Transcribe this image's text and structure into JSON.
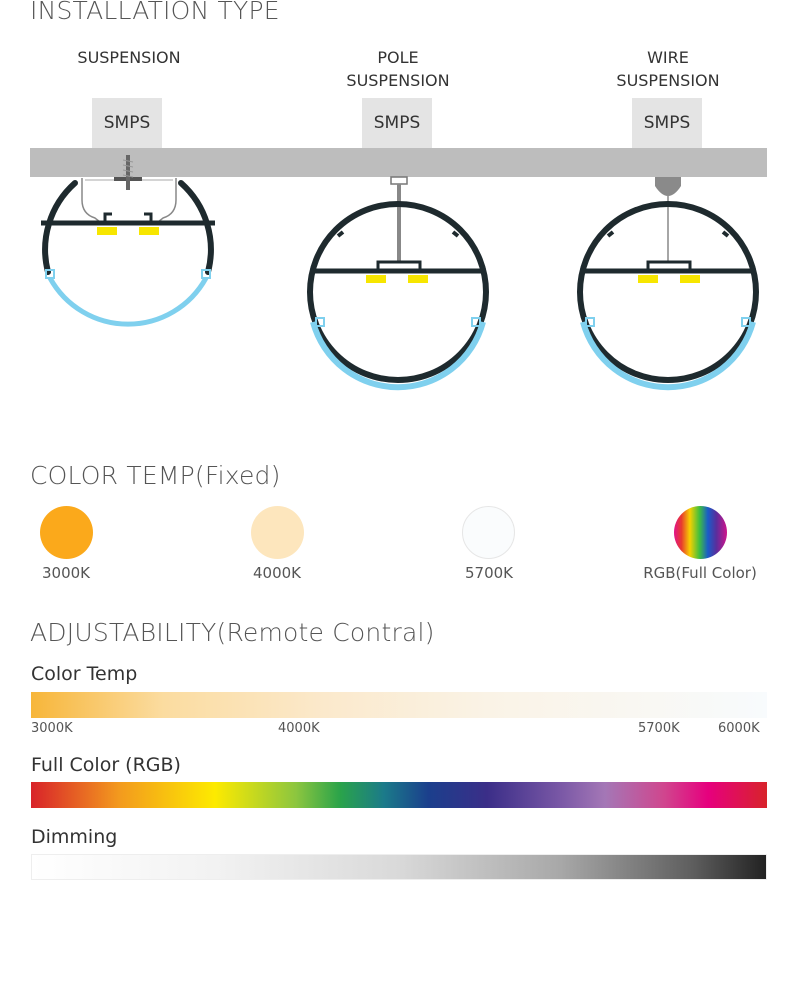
{
  "installation": {
    "title": "INSTALLATION TYPE",
    "types": [
      {
        "label_line1": "SUSPENSION",
        "label_line2": "",
        "box": "SMPS",
        "mount": "screw"
      },
      {
        "label_line1": "POLE",
        "label_line2": "SUSPENSION",
        "box": "SMPS",
        "mount": "pole"
      },
      {
        "label_line1": "WIRE",
        "label_line2": "SUSPENSION",
        "box": "SMPS",
        "mount": "wire"
      }
    ],
    "colors": {
      "ceiling": "#bdbdbd",
      "body": "#1e2a2e",
      "diffuser": "#7fd0ee",
      "led": "#f7e600",
      "wire": "#888888"
    }
  },
  "color_temp": {
    "title": "COLOR TEMP(Fixed)",
    "items": [
      {
        "label": "3000K",
        "color": "#fba91b"
      },
      {
        "label": "4000K",
        "color": "#fde6bd"
      },
      {
        "label": "5700K",
        "color": "#fafcfd"
      },
      {
        "label": "RGB(Full Color)",
        "color": "rgb-gradient"
      }
    ]
  },
  "adjustability": {
    "title": "ADJUSTABILITY(Remote Contral)",
    "color_temp": {
      "label": "Color Temp",
      "ticks": [
        "3000K",
        "4000K",
        "5700K",
        "6000K"
      ]
    },
    "full_color": {
      "label": "Full Color (RGB)"
    },
    "dimming": {
      "label": "Dimming"
    }
  }
}
